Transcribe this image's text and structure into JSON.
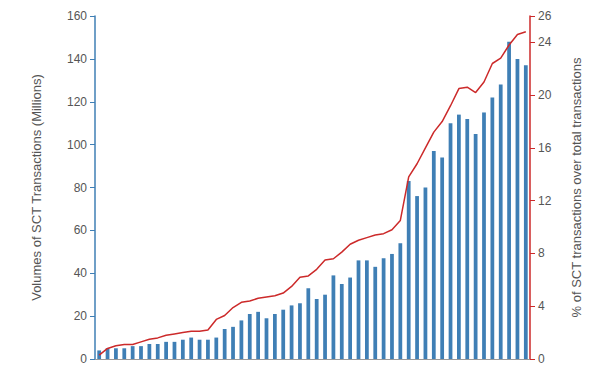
{
  "chart_data": {
    "type": "bar",
    "categories": [
      null,
      null,
      null,
      null,
      null,
      null,
      null,
      null,
      null,
      null,
      null,
      null,
      null,
      null,
      null,
      null,
      null,
      null,
      null,
      null,
      null,
      null,
      null,
      null,
      null,
      null,
      null,
      null,
      null,
      null,
      null,
      null,
      null,
      null,
      null,
      null,
      null,
      null,
      null,
      null,
      null,
      null,
      null,
      null,
      null,
      null,
      null,
      null,
      null,
      null,
      null,
      null
    ],
    "series": [
      {
        "type": "bar",
        "color": "#3f7fb5",
        "values": [
          4,
          5,
          5,
          5,
          6,
          6,
          7,
          7,
          8,
          8,
          9,
          10,
          9,
          9,
          10,
          14,
          15,
          18,
          21,
          22,
          19,
          21,
          23,
          25,
          26,
          33,
          28,
          30,
          39,
          35,
          38,
          46,
          46,
          43,
          47,
          49,
          54,
          83,
          76,
          80,
          97,
          94,
          110,
          114,
          112,
          105,
          115,
          122,
          128,
          148,
          140,
          137
        ]
      },
      {
        "type": "line",
        "axis": "y2",
        "color": "#cc2a2a",
        "values": [
          0.3,
          0.8,
          1.0,
          1.1,
          1.1,
          1.3,
          1.5,
          1.6,
          1.8,
          1.9,
          2.0,
          2.1,
          2.1,
          2.2,
          3.0,
          3.3,
          3.9,
          4.3,
          4.4,
          4.6,
          4.7,
          4.8,
          5.0,
          5.5,
          6.2,
          6.3,
          6.8,
          7.5,
          7.6,
          8.1,
          8.7,
          9.0,
          9.2,
          9.4,
          9.5,
          9.8,
          10.5,
          13.8,
          14.8,
          16.0,
          17.2,
          18.0,
          19.2,
          20.5,
          20.6,
          20.2,
          21.0,
          22.4,
          22.8,
          23.8,
          24.6,
          24.8
        ]
      }
    ],
    "ylabel": "Volumes of SCT Transactions (Millions)",
    "y2label": "% of SCT transactions over total transactions",
    "ylim": [
      0,
      160
    ],
    "yticks": [
      0,
      20,
      40,
      60,
      80,
      100,
      120,
      140,
      160
    ],
    "y2lim": [
      0,
      26
    ],
    "y2ticks": [
      0,
      4,
      8,
      12,
      16,
      20,
      24
    ],
    "grid": false
  }
}
